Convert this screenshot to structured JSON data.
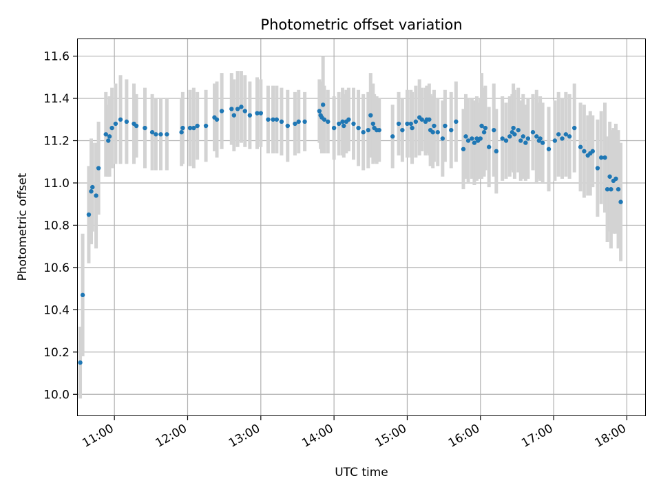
{
  "chart_data": {
    "type": "scatter",
    "title": "Photometric offset variation",
    "xlabel": "UTC time",
    "ylabel": "Photometric offset",
    "xlim": [
      "10:30",
      "18:15"
    ],
    "ylim": [
      9.9,
      11.68
    ],
    "x_ticks": [
      "11:00",
      "12:00",
      "13:00",
      "14:00",
      "15:00",
      "16:00",
      "17:00",
      "18:00"
    ],
    "y_ticks": [
      "10.0",
      "10.2",
      "10.4",
      "10.6",
      "10.8",
      "11.0",
      "11.2",
      "11.4",
      "11.6"
    ],
    "grid": true,
    "errorbar_color": "#d3d3d3",
    "point_color": "#1f77b4",
    "series": [
      {
        "x": [
          "10:32",
          "10:34",
          "10:39",
          "10:41",
          "10:42",
          "10:45",
          "10:47",
          "10:53",
          "10:55",
          "10:56",
          "10:58",
          "11:01",
          "11:05",
          "11:10",
          "11:16",
          "11:18",
          "11:25",
          "11:31",
          "11:34",
          "11:38",
          "11:43",
          "11:55",
          "11:56",
          "12:02",
          "12:05",
          "12:08",
          "12:15",
          "12:22",
          "12:24",
          "12:28",
          "12:36",
          "12:38",
          "12:41",
          "12:44",
          "12:47",
          "12:51",
          "12:57",
          "13:00",
          "13:06",
          "13:10",
          "13:13",
          "13:17",
          "13:22",
          "13:28",
          "13:31",
          "13:36",
          "13:48",
          "13:49",
          "13:50",
          "13:51",
          "13:52",
          "13:55",
          "14:00",
          "14:04",
          "14:07",
          "14:08",
          "14:10",
          "14:12",
          "14:16",
          "14:20",
          "14:24",
          "14:28",
          "14:30",
          "14:32",
          "14:33",
          "14:35",
          "14:37",
          "14:48",
          "14:53",
          "14:56",
          "15:00",
          "15:03",
          "15:04",
          "15:07",
          "15:10",
          "15:12",
          "15:15",
          "15:16",
          "15:18",
          "15:19",
          "15:21",
          "15:22",
          "15:25",
          "15:29",
          "15:31",
          "15:36",
          "15:40",
          "15:46",
          "15:48",
          "15:50",
          "15:53",
          "15:55",
          "15:57",
          "15:58",
          "16:00",
          "16:01",
          "16:03",
          "16:04",
          "16:07",
          "16:11",
          "16:13",
          "16:18",
          "16:21",
          "16:24",
          "16:26",
          "16:27",
          "16:28",
          "16:31",
          "16:33",
          "16:35",
          "16:37",
          "16:39",
          "16:43",
          "16:46",
          "16:48",
          "16:49",
          "16:51",
          "16:56",
          "17:01",
          "17:04",
          "17:07",
          "17:10",
          "17:13",
          "17:17",
          "17:22",
          "17:25",
          "17:28",
          "17:30",
          "17:32",
          "17:36",
          "17:39",
          "17:42",
          "17:44",
          "17:46",
          "17:47",
          "17:49",
          "17:51",
          "17:53",
          "17:55"
        ],
        "y": [
          10.15,
          10.47,
          10.85,
          10.96,
          10.98,
          10.94,
          11.07,
          11.23,
          11.2,
          11.22,
          11.26,
          11.28,
          11.3,
          11.29,
          11.28,
          11.27,
          11.26,
          11.24,
          11.23,
          11.23,
          11.23,
          11.24,
          11.26,
          11.26,
          11.26,
          11.27,
          11.27,
          11.31,
          11.3,
          11.34,
          11.35,
          11.32,
          11.35,
          11.36,
          11.34,
          11.32,
          11.33,
          11.33,
          11.3,
          11.3,
          11.3,
          11.29,
          11.27,
          11.28,
          11.29,
          11.29,
          11.34,
          11.32,
          11.31,
          11.37,
          11.3,
          11.29,
          11.26,
          11.28,
          11.29,
          11.27,
          11.29,
          11.3,
          11.28,
          11.26,
          11.24,
          11.25,
          11.32,
          11.28,
          11.26,
          11.25,
          11.25,
          11.22,
          11.28,
          11.25,
          11.28,
          11.28,
          11.26,
          11.29,
          11.31,
          11.3,
          11.29,
          11.3,
          11.3,
          11.25,
          11.24,
          11.27,
          11.24,
          11.21,
          11.27,
          11.25,
          11.29,
          11.16,
          11.22,
          11.2,
          11.21,
          11.19,
          11.21,
          11.2,
          11.21,
          11.27,
          11.24,
          11.26,
          11.17,
          11.25,
          11.15,
          11.21,
          11.2,
          11.22,
          11.24,
          11.26,
          11.23,
          11.25,
          11.2,
          11.22,
          11.19,
          11.21,
          11.24,
          11.22,
          11.2,
          11.21,
          11.19,
          11.16,
          11.2,
          11.23,
          11.21,
          11.23,
          11.22,
          11.26,
          11.17,
          11.15,
          11.13,
          11.14,
          11.15,
          11.07,
          11.12,
          11.12,
          10.97,
          11.03,
          10.97,
          11.01,
          11.02,
          10.97,
          10.91
        ],
        "yerr": [
          0.17,
          0.29,
          0.23,
          0.25,
          0.21,
          0.25,
          0.22,
          0.2,
          0.17,
          0.19,
          0.19,
          0.19,
          0.21,
          0.2,
          0.19,
          0.15,
          0.19,
          0.18,
          0.17,
          0.17,
          0.17,
          0.16,
          0.17,
          0.18,
          0.19,
          0.16,
          0.17,
          0.16,
          0.18,
          0.18,
          0.17,
          0.17,
          0.18,
          0.17,
          0.17,
          0.16,
          0.17,
          0.16,
          0.16,
          0.16,
          0.16,
          0.16,
          0.17,
          0.15,
          0.15,
          0.14,
          0.15,
          0.16,
          0.17,
          0.23,
          0.16,
          0.15,
          0.15,
          0.15,
          0.16,
          0.15,
          0.15,
          0.15,
          0.17,
          0.18,
          0.18,
          0.18,
          0.2,
          0.19,
          0.16,
          0.16,
          0.15,
          0.15,
          0.15,
          0.15,
          0.16,
          0.16,
          0.17,
          0.17,
          0.18,
          0.15,
          0.16,
          0.16,
          0.17,
          0.17,
          0.17,
          0.17,
          0.16,
          0.18,
          0.17,
          0.18,
          0.19,
          0.19,
          0.2,
          0.2,
          0.19,
          0.2,
          0.2,
          0.18,
          0.19,
          0.25,
          0.21,
          0.2,
          0.19,
          0.22,
          0.2,
          0.2,
          0.18,
          0.19,
          0.18,
          0.21,
          0.21,
          0.2,
          0.19,
          0.2,
          0.18,
          0.19,
          0.18,
          0.22,
          0.18,
          0.2,
          0.19,
          0.2,
          0.19,
          0.2,
          0.19,
          0.2,
          0.2,
          0.21,
          0.21,
          0.22,
          0.19,
          0.2,
          0.17,
          0.23,
          0.22,
          0.26,
          0.25,
          0.26,
          0.28,
          0.25,
          0.26,
          0.28,
          0.28
        ]
      }
    ]
  }
}
